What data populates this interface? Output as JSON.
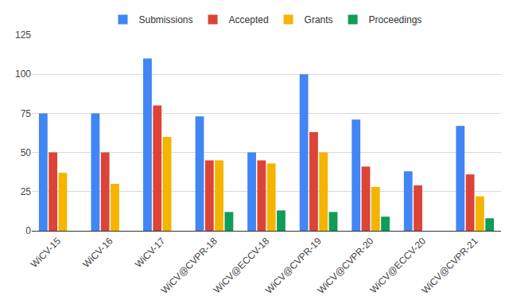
{
  "chart_data": {
    "type": "bar",
    "categories": [
      "WiCV-15",
      "WiCV-16",
      "WiCV-17",
      "WiCV@CVPR-18",
      "WiCV@ECCV-18",
      "WiCV@CVPR-19",
      "WiCV@CVPR-20",
      "WiCV@ECCV-20",
      "WiCV@CVPR-21"
    ],
    "series": [
      {
        "name": "Submissions",
        "color": "#4285f4",
        "values": [
          75,
          75,
          110,
          73,
          50,
          100,
          71,
          38,
          67
        ]
      },
      {
        "name": "Accepted",
        "color": "#db4437",
        "values": [
          50,
          50,
          80,
          45,
          45,
          63,
          41,
          29,
          36
        ]
      },
      {
        "name": "Grants",
        "color": "#f4b400",
        "values": [
          37,
          30,
          60,
          45,
          43,
          50,
          28,
          null,
          22
        ]
      },
      {
        "name": "Proceedings",
        "color": "#0f9d58",
        "values": [
          null,
          null,
          null,
          12,
          13,
          12,
          9,
          null,
          8
        ]
      }
    ],
    "ylim": [
      0,
      125
    ],
    "yticks": [
      0,
      25,
      50,
      75,
      100,
      125
    ],
    "grid": true,
    "legend": "top"
  }
}
